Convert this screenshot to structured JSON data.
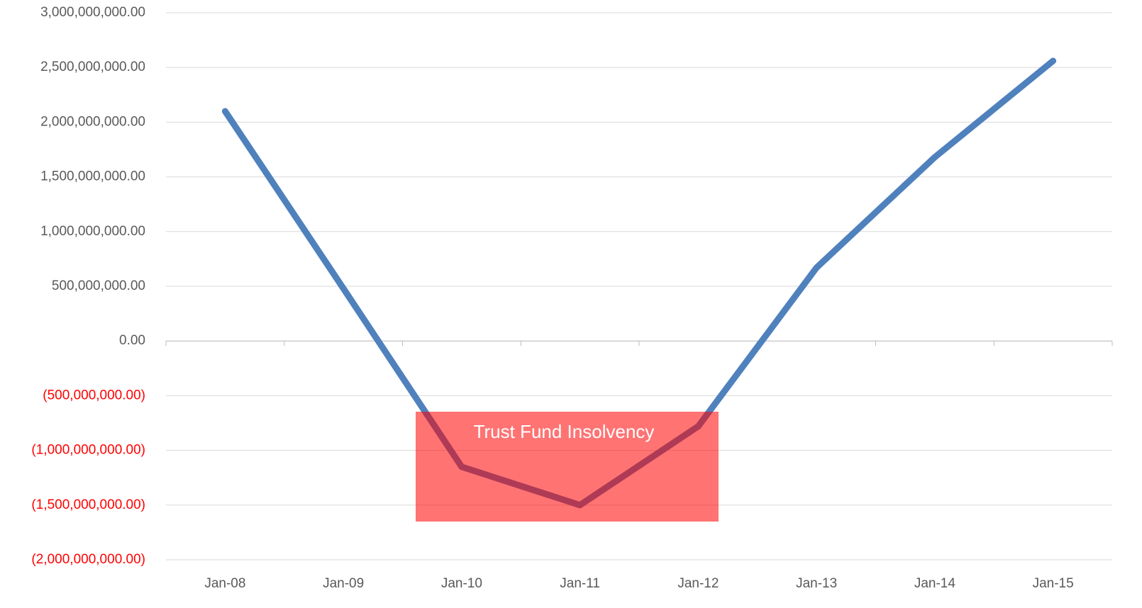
{
  "chart_data": {
    "type": "line",
    "categories": [
      "Jan-08",
      "Jan-09",
      "Jan-10",
      "Jan-11",
      "Jan-12",
      "Jan-13",
      "Jan-14",
      "Jan-15"
    ],
    "series": [
      {
        "color": "#4f81bd",
        "values": [
          2100000000,
          480000000,
          -1150000000,
          -1500000000,
          -780000000,
          670000000,
          1680000000,
          2560000000
        ]
      }
    ],
    "ylim": [
      -2000000000,
      3000000000
    ],
    "yticks": [
      {
        "value": -2000000000,
        "label": "(2,000,000,000.00)"
      },
      {
        "value": -1500000000,
        "label": "(1,500,000,000.00)"
      },
      {
        "value": -1000000000,
        "label": "(1,000,000,000.00)"
      },
      {
        "value": -500000000,
        "label": "(500,000,000.00)"
      },
      {
        "value": 0,
        "label": "0.00"
      },
      {
        "value": 500000000,
        "label": "500,000,000.00"
      },
      {
        "value": 1000000000,
        "label": "1,000,000,000.00"
      },
      {
        "value": 1500000000,
        "label": "1,500,000,000.00"
      },
      {
        "value": 2000000000,
        "label": "2,000,000,000.00"
      },
      {
        "value": 2500000000,
        "label": "2,500,000,000.00"
      },
      {
        "value": 3000000000,
        "label": "3,000,000,000.00"
      }
    ],
    "grid": true,
    "negative_label_color": "#ff0000",
    "annotation": {
      "text": "Trust Fund Insolvency",
      "color": "#ff0000"
    }
  }
}
